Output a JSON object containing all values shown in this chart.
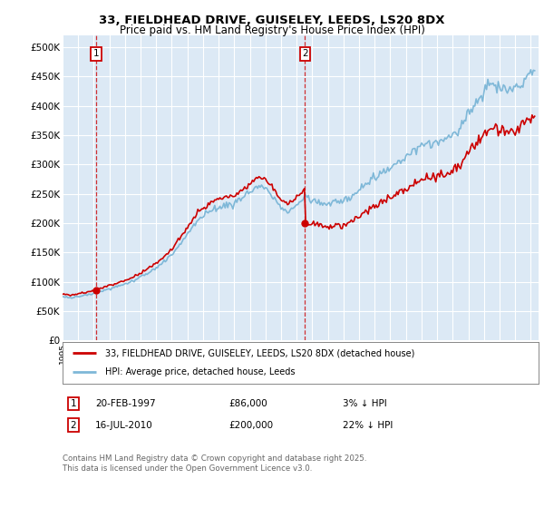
{
  "title_line1": "33, FIELDHEAD DRIVE, GUISELEY, LEEDS, LS20 8DX",
  "title_line2": "Price paid vs. HM Land Registry's House Price Index (HPI)",
  "ylim": [
    0,
    520000
  ],
  "yticks": [
    0,
    50000,
    100000,
    150000,
    200000,
    250000,
    300000,
    350000,
    400000,
    450000,
    500000
  ],
  "ytick_labels": [
    "£0",
    "£50K",
    "£100K",
    "£150K",
    "£200K",
    "£250K",
    "£300K",
    "£350K",
    "£400K",
    "£450K",
    "£500K"
  ],
  "background_color": "#dce9f5",
  "grid_color": "#ffffff",
  "hpi_color": "#7fb8d8",
  "price_color": "#cc0000",
  "sale1_date": 1997.13,
  "sale1_price": 86000,
  "sale2_date": 2010.54,
  "sale2_price": 200000,
  "legend_label1": "33, FIELDHEAD DRIVE, GUISELEY, LEEDS, LS20 8DX (detached house)",
  "legend_label2": "HPI: Average price, detached house, Leeds",
  "note1_num": "1",
  "note1_date": "20-FEB-1997",
  "note1_price": "£86,000",
  "note1_hpi": "3% ↓ HPI",
  "note2_num": "2",
  "note2_date": "16-JUL-2010",
  "note2_price": "£200,000",
  "note2_hpi": "22% ↓ HPI",
  "footer": "Contains HM Land Registry data © Crown copyright and database right 2025.\nThis data is licensed under the Open Government Licence v3.0."
}
